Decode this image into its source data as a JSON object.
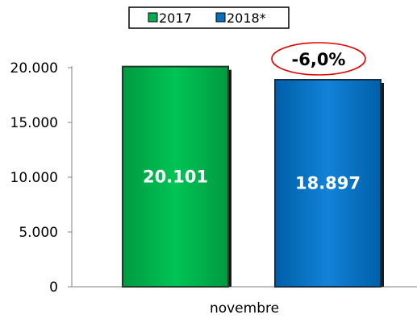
{
  "chart_data": {
    "type": "bar",
    "categories": [
      "novembre"
    ],
    "series": [
      {
        "name": "2017",
        "values": [
          20101
        ],
        "value_label": "20.101",
        "color": "#00b050"
      },
      {
        "name": "2018*",
        "values": [
          18897
        ],
        "value_label": "18.897",
        "color": "#0070c0"
      }
    ],
    "ylim": [
      0,
      20000
    ],
    "yticks": [
      {
        "value": 0,
        "label": "0"
      },
      {
        "value": 5000,
        "label": "5.000"
      },
      {
        "value": 10000,
        "label": "10.000"
      },
      {
        "value": 15000,
        "label": "15.000"
      },
      {
        "value": 20000,
        "label": "20.000"
      }
    ],
    "grid": false,
    "legend_position": "top",
    "annotation": {
      "text": "-6,0%",
      "outline_color": "#e00000"
    }
  }
}
